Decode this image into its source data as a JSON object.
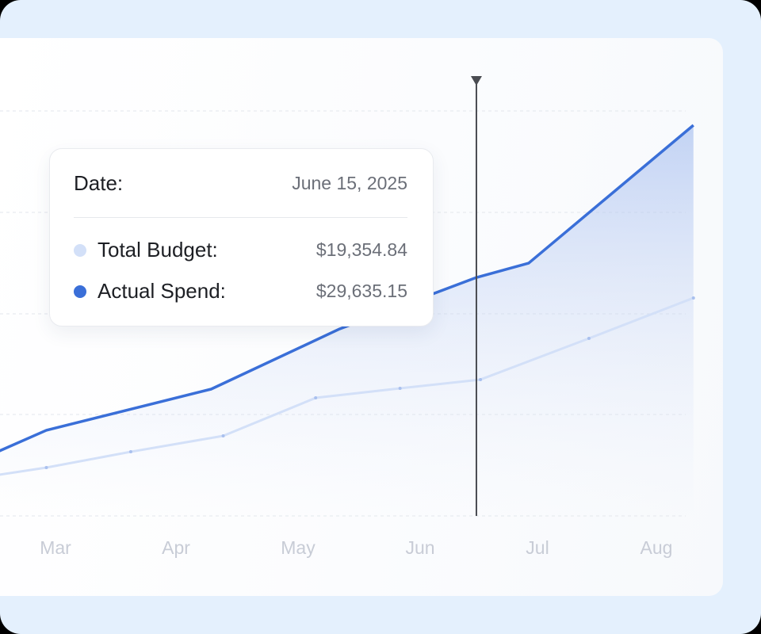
{
  "chart_data": {
    "type": "line",
    "x_ticks": [
      "Mar",
      "Apr",
      "May",
      "Jun",
      "Jul",
      "Aug"
    ],
    "grid": true,
    "series": [
      {
        "name": "Total Budget",
        "color": "#d3e0f8",
        "points": [
          [
            "2025-02-15",
            9720
          ],
          [
            "2025-02-28",
            10520
          ],
          [
            "2025-03-21",
            12110
          ],
          [
            "2025-04-13",
            13710
          ],
          [
            "2025-05-06",
            17530
          ],
          [
            "2025-05-27",
            18490
          ],
          [
            "2025-06-16",
            19370
          ],
          [
            "2025-07-13",
            23510
          ],
          [
            "2025-08-08",
            27580
          ]
        ]
      },
      {
        "name": "Actual Spend",
        "color": "#3a6fd8",
        "points": [
          [
            "2025-02-15",
            11960
          ],
          [
            "2025-02-28",
            14270
          ],
          [
            "2025-04-10",
            18410
          ],
          [
            "2025-05-12",
            24470
          ],
          [
            "2025-06-15",
            29635.15
          ],
          [
            "2025-06-28",
            31080
          ],
          [
            "2025-08-08",
            44950
          ]
        ]
      }
    ],
    "cursor_date": "2025-06-15"
  },
  "tooltip": {
    "date_label": "Date:",
    "date_value": "June 15, 2025",
    "rows": [
      {
        "label": "Total Budget:",
        "value": "$19,354.84",
        "color": "#d3e0f8"
      },
      {
        "label": "Actual Spend:",
        "value": "$29,635.15",
        "color": "#3a6fd8"
      }
    ]
  }
}
